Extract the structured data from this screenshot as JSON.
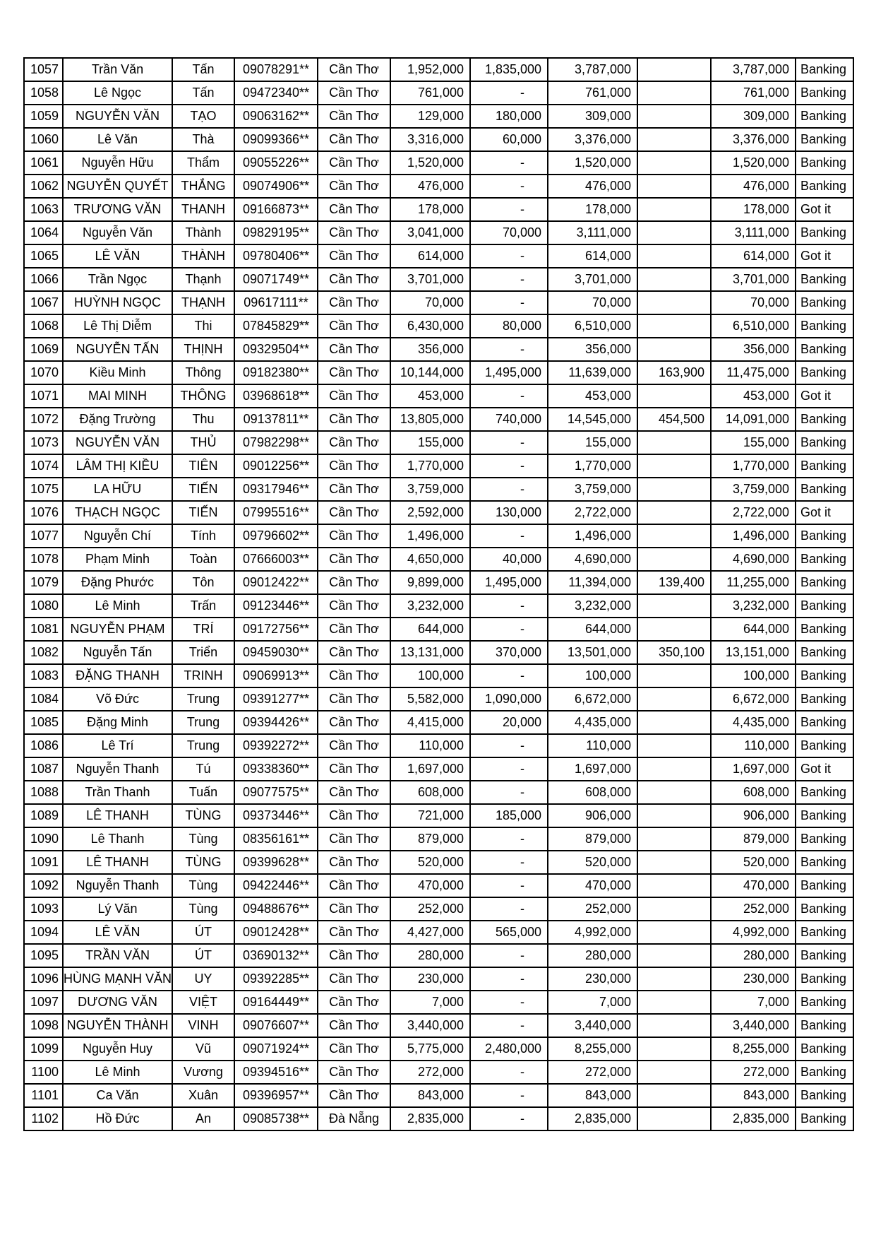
{
  "page": {
    "background": "#ffffff",
    "border_color": "#000000",
    "status_ok_label": "Banking",
    "status_alt_label": "Got it"
  },
  "table": {
    "rows": [
      {
        "no": "1057",
        "last_name": "Trần Văn",
        "first_name": "Tấn",
        "phone": "09078291**",
        "city": "Cần Thơ",
        "amount1": "1,952,000",
        "amount2": "1,835,000",
        "total": "3,787,000",
        "fee": "",
        "final": "3,787,000",
        "status": "Banking"
      },
      {
        "no": "1058",
        "last_name": "Lê Ngọc",
        "first_name": "Tấn",
        "phone": "09472340**",
        "city": "Cần Thơ",
        "amount1": "761,000",
        "amount2": "-",
        "total": "761,000",
        "fee": "",
        "final": "761,000",
        "status": "Banking"
      },
      {
        "no": "1059",
        "last_name": "NGUYỄN VĂN",
        "first_name": "TẠO",
        "phone": "09063162**",
        "city": "Cần Thơ",
        "amount1": "129,000",
        "amount2": "180,000",
        "total": "309,000",
        "fee": "",
        "final": "309,000",
        "status": "Banking"
      },
      {
        "no": "1060",
        "last_name": "Lê Văn",
        "first_name": "Thà",
        "phone": "09099366**",
        "city": "Cần Thơ",
        "amount1": "3,316,000",
        "amount2": "60,000",
        "total": "3,376,000",
        "fee": "",
        "final": "3,376,000",
        "status": "Banking"
      },
      {
        "no": "1061",
        "last_name": "Nguyễn Hữu",
        "first_name": "Thẩm",
        "phone": "09055226**",
        "city": "Cần Thơ",
        "amount1": "1,520,000",
        "amount2": "-",
        "total": "1,520,000",
        "fee": "",
        "final": "1,520,000",
        "status": "Banking"
      },
      {
        "no": "1062",
        "last_name": "NGUYỄN QUYẾT",
        "first_name": "THẮNG",
        "phone": "09074906**",
        "city": "Cần Thơ",
        "amount1": "476,000",
        "amount2": "-",
        "total": "476,000",
        "fee": "",
        "final": "476,000",
        "status": "Banking"
      },
      {
        "no": "1063",
        "last_name": "TRƯƠNG VĂN",
        "first_name": "THANH",
        "phone": "09166873**",
        "city": "Cần Thơ",
        "amount1": "178,000",
        "amount2": "-",
        "total": "178,000",
        "fee": "",
        "final": "178,000",
        "status": "Got it"
      },
      {
        "no": "1064",
        "last_name": "Nguyễn Văn",
        "first_name": "Thành",
        "phone": "09829195**",
        "city": "Cần Thơ",
        "amount1": "3,041,000",
        "amount2": "70,000",
        "total": "3,111,000",
        "fee": "",
        "final": "3,111,000",
        "status": "Banking"
      },
      {
        "no": "1065",
        "last_name": "LÊ VĂN",
        "first_name": "THÀNH",
        "phone": "09780406**",
        "city": "Cần Thơ",
        "amount1": "614,000",
        "amount2": "-",
        "total": "614,000",
        "fee": "",
        "final": "614,000",
        "status": "Got it"
      },
      {
        "no": "1066",
        "last_name": "Trần Ngọc",
        "first_name": "Thạnh",
        "phone": "09071749**",
        "city": "Cần Thơ",
        "amount1": "3,701,000",
        "amount2": "-",
        "total": "3,701,000",
        "fee": "",
        "final": "3,701,000",
        "status": "Banking"
      },
      {
        "no": "1067",
        "last_name": "HUỲNH NGỌC",
        "first_name": "THẠNH",
        "phone": "09617111**",
        "city": "Cần Thơ",
        "amount1": "70,000",
        "amount2": "-",
        "total": "70,000",
        "fee": "",
        "final": "70,000",
        "status": "Banking"
      },
      {
        "no": "1068",
        "last_name": "Lê Thị Diễm",
        "first_name": "Thi",
        "phone": "07845829**",
        "city": "Cần Thơ",
        "amount1": "6,430,000",
        "amount2": "80,000",
        "total": "6,510,000",
        "fee": "",
        "final": "6,510,000",
        "status": "Banking"
      },
      {
        "no": "1069",
        "last_name": "NGUYỄN TẤN",
        "first_name": "THỊNH",
        "phone": "09329504**",
        "city": "Cần Thơ",
        "amount1": "356,000",
        "amount2": "-",
        "total": "356,000",
        "fee": "",
        "final": "356,000",
        "status": "Banking"
      },
      {
        "no": "1070",
        "last_name": "Kiều Minh",
        "first_name": "Thông",
        "phone": "09182380**",
        "city": "Cần Thơ",
        "amount1": "10,144,000",
        "amount2": "1,495,000",
        "total": "11,639,000",
        "fee": "163,900",
        "final": "11,475,000",
        "status": "Banking"
      },
      {
        "no": "1071",
        "last_name": "MAI MINH",
        "first_name": "THÔNG",
        "phone": "03968618**",
        "city": "Cần Thơ",
        "amount1": "453,000",
        "amount2": "-",
        "total": "453,000",
        "fee": "",
        "final": "453,000",
        "status": "Got it"
      },
      {
        "no": "1072",
        "last_name": "Đặng Trường",
        "first_name": "Thu",
        "phone": "09137811**",
        "city": "Cần Thơ",
        "amount1": "13,805,000",
        "amount2": "740,000",
        "total": "14,545,000",
        "fee": "454,500",
        "final": "14,091,000",
        "status": "Banking"
      },
      {
        "no": "1073",
        "last_name": "NGUYỄN VĂN",
        "first_name": "THỦ",
        "phone": "07982298**",
        "city": "Cần Thơ",
        "amount1": "155,000",
        "amount2": "-",
        "total": "155,000",
        "fee": "",
        "final": "155,000",
        "status": "Banking"
      },
      {
        "no": "1074",
        "last_name": "LÂM THỊ KIỀU",
        "first_name": "TIÊN",
        "phone": "09012256**",
        "city": "Cần Thơ",
        "amount1": "1,770,000",
        "amount2": "-",
        "total": "1,770,000",
        "fee": "",
        "final": "1,770,000",
        "status": "Banking"
      },
      {
        "no": "1075",
        "last_name": "LA HỮU",
        "first_name": "TIẾN",
        "phone": "09317946**",
        "city": "Cần Thơ",
        "amount1": "3,759,000",
        "amount2": "-",
        "total": "3,759,000",
        "fee": "",
        "final": "3,759,000",
        "status": "Banking"
      },
      {
        "no": "1076",
        "last_name": "THẠCH NGỌC",
        "first_name": "TIẾN",
        "phone": "07995516**",
        "city": "Cần Thơ",
        "amount1": "2,592,000",
        "amount2": "130,000",
        "total": "2,722,000",
        "fee": "",
        "final": "2,722,000",
        "status": "Got it"
      },
      {
        "no": "1077",
        "last_name": "Nguyễn Chí",
        "first_name": "Tính",
        "phone": "09796602**",
        "city": "Cần Thơ",
        "amount1": "1,496,000",
        "amount2": "-",
        "total": "1,496,000",
        "fee": "",
        "final": "1,496,000",
        "status": "Banking"
      },
      {
        "no": "1078",
        "last_name": "Phạm Minh",
        "first_name": "Toàn",
        "phone": "07666003**",
        "city": "Cần Thơ",
        "amount1": "4,650,000",
        "amount2": "40,000",
        "total": "4,690,000",
        "fee": "",
        "final": "4,690,000",
        "status": "Banking"
      },
      {
        "no": "1079",
        "last_name": "Đặng Phước",
        "first_name": "Tôn",
        "phone": "09012422**",
        "city": "Cần Thơ",
        "amount1": "9,899,000",
        "amount2": "1,495,000",
        "total": "11,394,000",
        "fee": "139,400",
        "final": "11,255,000",
        "status": "Banking"
      },
      {
        "no": "1080",
        "last_name": "Lê Minh",
        "first_name": "Trấn",
        "phone": "09123446**",
        "city": "Cần Thơ",
        "amount1": "3,232,000",
        "amount2": "-",
        "total": "3,232,000",
        "fee": "",
        "final": "3,232,000",
        "status": "Banking"
      },
      {
        "no": "1081",
        "last_name": "NGUYỄN PHẠM",
        "first_name": "TRÍ",
        "phone": "09172756**",
        "city": "Cần Thơ",
        "amount1": "644,000",
        "amount2": "-",
        "total": "644,000",
        "fee": "",
        "final": "644,000",
        "status": "Banking"
      },
      {
        "no": "1082",
        "last_name": "Nguyễn Tấn",
        "first_name": "Triển",
        "phone": "09459030**",
        "city": "Cần Thơ",
        "amount1": "13,131,000",
        "amount2": "370,000",
        "total": "13,501,000",
        "fee": "350,100",
        "final": "13,151,000",
        "status": "Banking"
      },
      {
        "no": "1083",
        "last_name": "ĐẶNG THANH",
        "first_name": "TRINH",
        "phone": "09069913**",
        "city": "Cần Thơ",
        "amount1": "100,000",
        "amount2": "-",
        "total": "100,000",
        "fee": "",
        "final": "100,000",
        "status": "Banking"
      },
      {
        "no": "1084",
        "last_name": "Võ Đức",
        "first_name": "Trung",
        "phone": "09391277**",
        "city": "Cần Thơ",
        "amount1": "5,582,000",
        "amount2": "1,090,000",
        "total": "6,672,000",
        "fee": "",
        "final": "6,672,000",
        "status": "Banking"
      },
      {
        "no": "1085",
        "last_name": "Đặng Minh",
        "first_name": "Trung",
        "phone": "09394426**",
        "city": "Cần Thơ",
        "amount1": "4,415,000",
        "amount2": "20,000",
        "total": "4,435,000",
        "fee": "",
        "final": "4,435,000",
        "status": "Banking"
      },
      {
        "no": "1086",
        "last_name": "Lê Trí",
        "first_name": "Trung",
        "phone": "09392272**",
        "city": "Cần Thơ",
        "amount1": "110,000",
        "amount2": "-",
        "total": "110,000",
        "fee": "",
        "final": "110,000",
        "status": "Banking"
      },
      {
        "no": "1087",
        "last_name": "Nguyễn Thanh",
        "first_name": "Tú",
        "phone": "09338360**",
        "city": "Cần Thơ",
        "amount1": "1,697,000",
        "amount2": "-",
        "total": "1,697,000",
        "fee": "",
        "final": "1,697,000",
        "status": "Got it"
      },
      {
        "no": "1088",
        "last_name": "Trần Thanh",
        "first_name": "Tuấn",
        "phone": "09077575**",
        "city": "Cần Thơ",
        "amount1": "608,000",
        "amount2": "-",
        "total": "608,000",
        "fee": "",
        "final": "608,000",
        "status": "Banking"
      },
      {
        "no": "1089",
        "last_name": "LÊ THANH",
        "first_name": "TÙNG",
        "phone": "09373446**",
        "city": "Cần Thơ",
        "amount1": "721,000",
        "amount2": "185,000",
        "total": "906,000",
        "fee": "",
        "final": "906,000",
        "status": "Banking"
      },
      {
        "no": "1090",
        "last_name": "Lê Thanh",
        "first_name": "Tùng",
        "phone": "08356161**",
        "city": "Cần Thơ",
        "amount1": "879,000",
        "amount2": "-",
        "total": "879,000",
        "fee": "",
        "final": "879,000",
        "status": "Banking"
      },
      {
        "no": "1091",
        "last_name": "LÊ THANH",
        "first_name": "TÙNG",
        "phone": "09399628**",
        "city": "Cần Thơ",
        "amount1": "520,000",
        "amount2": "-",
        "total": "520,000",
        "fee": "",
        "final": "520,000",
        "status": "Banking"
      },
      {
        "no": "1092",
        "last_name": "Nguyễn Thanh",
        "first_name": "Tùng",
        "phone": "09422446**",
        "city": "Cần Thơ",
        "amount1": "470,000",
        "amount2": "-",
        "total": "470,000",
        "fee": "",
        "final": "470,000",
        "status": "Banking"
      },
      {
        "no": "1093",
        "last_name": "Lý Văn",
        "first_name": "Tùng",
        "phone": "09488676**",
        "city": "Cần Thơ",
        "amount1": "252,000",
        "amount2": "-",
        "total": "252,000",
        "fee": "",
        "final": "252,000",
        "status": "Banking"
      },
      {
        "no": "1094",
        "last_name": "LÊ VĂN",
        "first_name": "ÚT",
        "phone": "09012428**",
        "city": "Cần Thơ",
        "amount1": "4,427,000",
        "amount2": "565,000",
        "total": "4,992,000",
        "fee": "",
        "final": "4,992,000",
        "status": "Banking"
      },
      {
        "no": "1095",
        "last_name": "TRẦN VĂN",
        "first_name": "ÚT",
        "phone": "03690132**",
        "city": "Cần Thơ",
        "amount1": "280,000",
        "amount2": "-",
        "total": "280,000",
        "fee": "",
        "final": "280,000",
        "status": "Banking"
      },
      {
        "no": "1096",
        "last_name": "HÙNG MẠNH VĂN",
        "first_name": "UY",
        "phone": "09392285**",
        "city": "Cần Thơ",
        "amount1": "230,000",
        "amount2": "-",
        "total": "230,000",
        "fee": "",
        "final": "230,000",
        "status": "Banking"
      },
      {
        "no": "1097",
        "last_name": "DƯƠNG VĂN",
        "first_name": "VIỆT",
        "phone": "09164449**",
        "city": "Cần Thơ",
        "amount1": "7,000",
        "amount2": "-",
        "total": "7,000",
        "fee": "",
        "final": "7,000",
        "status": "Banking"
      },
      {
        "no": "1098",
        "last_name": "NGUYỄN THÀNH",
        "first_name": "VINH",
        "phone": "09076607**",
        "city": "Cần Thơ",
        "amount1": "3,440,000",
        "amount2": "-",
        "total": "3,440,000",
        "fee": "",
        "final": "3,440,000",
        "status": "Banking"
      },
      {
        "no": "1099",
        "last_name": "Nguyễn Huy",
        "first_name": "Vũ",
        "phone": "09071924**",
        "city": "Cần Thơ",
        "amount1": "5,775,000",
        "amount2": "2,480,000",
        "total": "8,255,000",
        "fee": "",
        "final": "8,255,000",
        "status": "Banking"
      },
      {
        "no": "1100",
        "last_name": "Lê Minh",
        "first_name": "Vương",
        "phone": "09394516**",
        "city": "Cần Thơ",
        "amount1": "272,000",
        "amount2": "-",
        "total": "272,000",
        "fee": "",
        "final": "272,000",
        "status": "Banking"
      },
      {
        "no": "1101",
        "last_name": "Ca Văn",
        "first_name": "Xuân",
        "phone": "09396957**",
        "city": "Cần Thơ",
        "amount1": "843,000",
        "amount2": "-",
        "total": "843,000",
        "fee": "",
        "final": "843,000",
        "status": "Banking"
      },
      {
        "no": "1102",
        "last_name": "Hồ Đức",
        "first_name": "An",
        "phone": "09085738**",
        "city": "Đà Nẵng",
        "amount1": "2,835,000",
        "amount2": "-",
        "total": "2,835,000",
        "fee": "",
        "final": "2,835,000",
        "status": "Banking"
      }
    ]
  }
}
